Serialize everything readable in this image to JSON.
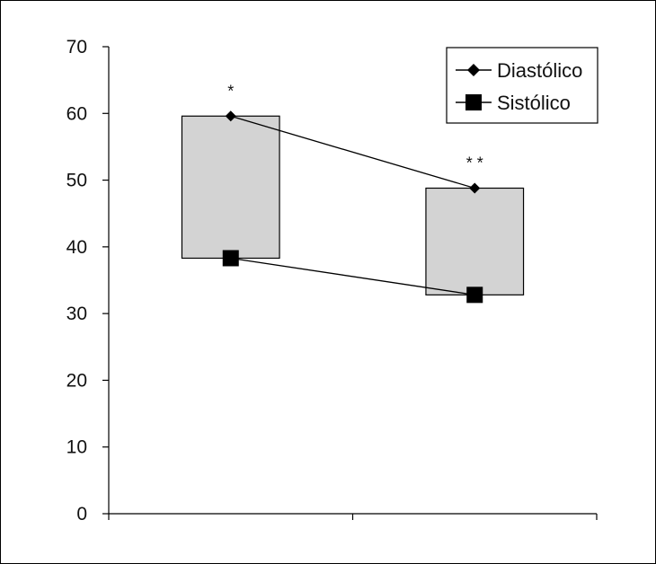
{
  "chart_data": {
    "type": "line",
    "title": "",
    "xlabel": "",
    "ylabel": "",
    "ylim": [
      0,
      70
    ],
    "yticks": [
      0,
      10,
      20,
      30,
      40,
      50,
      60,
      70
    ],
    "categories": [
      "",
      ""
    ],
    "series": [
      {
        "name": "Diastólico",
        "marker": "diamond",
        "values": [
          59.6,
          48.8
        ]
      },
      {
        "name": "Sistólico",
        "marker": "square",
        "values": [
          38.3,
          32.8
        ]
      }
    ],
    "boxes": [
      {
        "low": 38.3,
        "high": 59.6
      },
      {
        "low": 32.8,
        "high": 48.8
      }
    ],
    "annotations": [
      {
        "category_index": 0,
        "text": "*"
      },
      {
        "category_index": 1,
        "text": "* *"
      }
    ],
    "legend": "top-right",
    "grid": false,
    "colors": {
      "box_fill": "#d3d3d3",
      "line": "#000000"
    }
  }
}
